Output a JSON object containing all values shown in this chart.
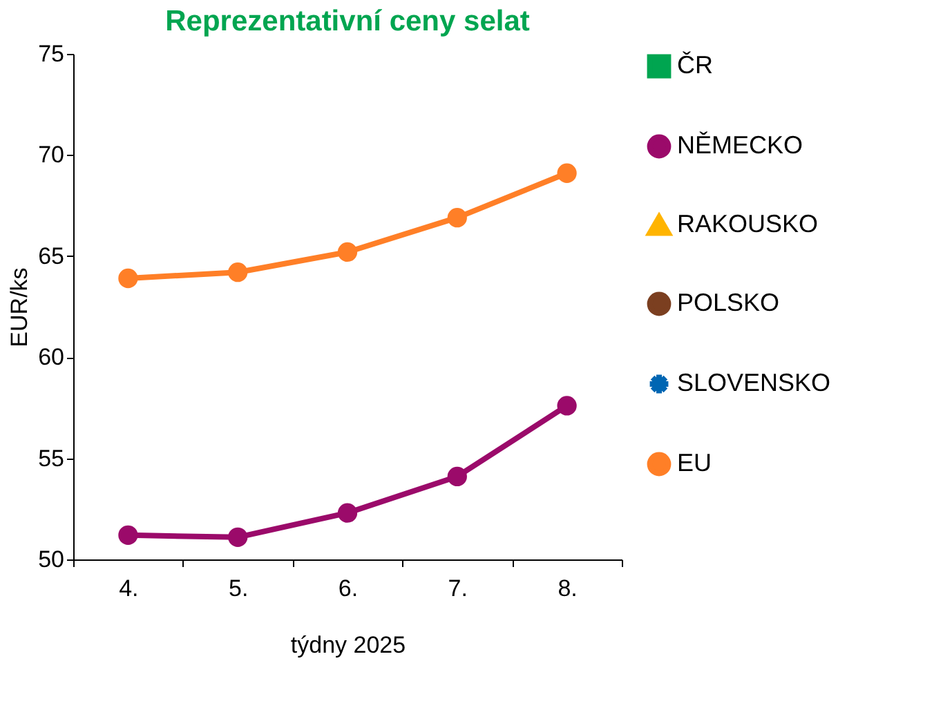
{
  "chart_data": {
    "type": "line",
    "title": "Reprezentativní ceny selat",
    "xlabel": "týdny 2025",
    "ylabel": "EUR/ks",
    "categories": [
      "4.",
      "5.",
      "6.",
      "7.",
      "8."
    ],
    "series": [
      {
        "name": "ČR",
        "color": "#00a550",
        "marker": "square",
        "values": [
          null,
          null,
          null,
          null,
          null
        ]
      },
      {
        "name": "NĚMECKO",
        "color": "#9b0a6a",
        "marker": "circle",
        "values": [
          51.2,
          51.1,
          52.3,
          54.1,
          57.6
        ]
      },
      {
        "name": "RAKOUSKO",
        "color": "#ffb400",
        "marker": "triangle",
        "values": [
          null,
          null,
          null,
          null,
          null
        ]
      },
      {
        "name": "POLSKO",
        "color": "#7b3f20",
        "marker": "circle",
        "values": [
          null,
          null,
          null,
          null,
          null
        ]
      },
      {
        "name": "SLOVENSKO",
        "color": "#0066b3",
        "marker": "star",
        "values": [
          null,
          null,
          null,
          null,
          null
        ]
      },
      {
        "name": "EU",
        "color": "#ff7f27",
        "marker": "circle",
        "values": [
          63.9,
          64.2,
          65.2,
          66.9,
          69.1
        ]
      }
    ],
    "ylim": [
      50,
      75
    ],
    "yticks": [
      50,
      55,
      60,
      65,
      70,
      75
    ],
    "grid": false,
    "legend": "right",
    "line_style": "solid"
  }
}
